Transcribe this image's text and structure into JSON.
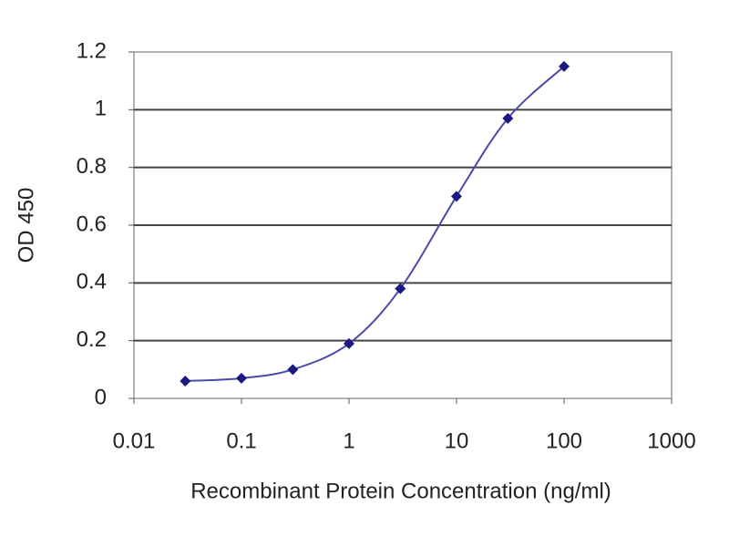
{
  "chart_data": {
    "type": "line",
    "x_label": "Recombinant Protein Concentration (ng/ml)",
    "y_label": "OD 450",
    "x": [
      0.03,
      0.1,
      0.3,
      1,
      3,
      10,
      30,
      100
    ],
    "series": [
      {
        "color": "#1a1a80",
        "values": [
          0.06,
          0.07,
          0.1,
          0.19,
          0.38,
          0.7,
          0.97,
          1.15
        ]
      }
    ],
    "xlim": [
      0.01,
      1000
    ],
    "xticks": [
      0.01,
      0.1,
      1,
      10,
      100,
      1000
    ],
    "xscale": "log",
    "ylim": [
      0,
      1.2
    ],
    "yticks": [
      0,
      0.2,
      0.4,
      0.6,
      0.8,
      1,
      1.2
    ],
    "grid": true
  }
}
